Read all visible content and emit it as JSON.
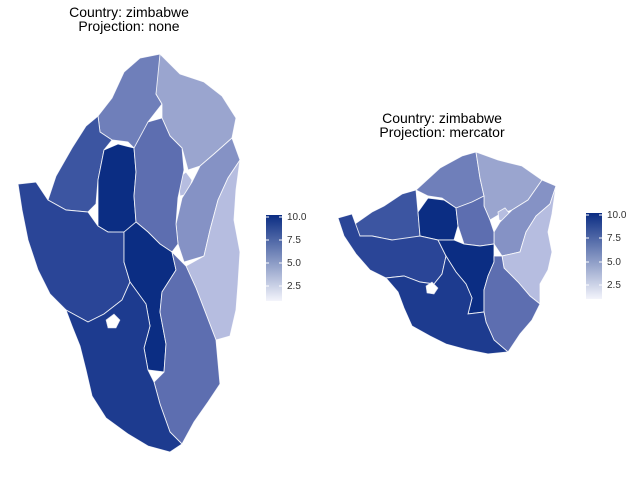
{
  "panels": [
    {
      "title_line1": "Country: zimbabwe",
      "title_line2": "Projection: none"
    },
    {
      "title_line1": "Country: zimbabwe",
      "title_line2": "Projection: mercator"
    }
  ],
  "legend": {
    "ticks": [
      "10.0",
      "7.5",
      "5.0",
      "2.5"
    ],
    "scale_low": "#f3f4fb",
    "scale_high": "#0b2d83"
  },
  "region_colors": {
    "v10": "#0b2d83",
    "v9": "#1d3b8f",
    "v8": "#2a4597",
    "v7": "#3c55a1",
    "v6": "#5d6eb0",
    "v5": "#6f7fba",
    "v4": "#8592c5",
    "v3": "#9aa5cf",
    "v2": "#b6bde0"
  }
}
